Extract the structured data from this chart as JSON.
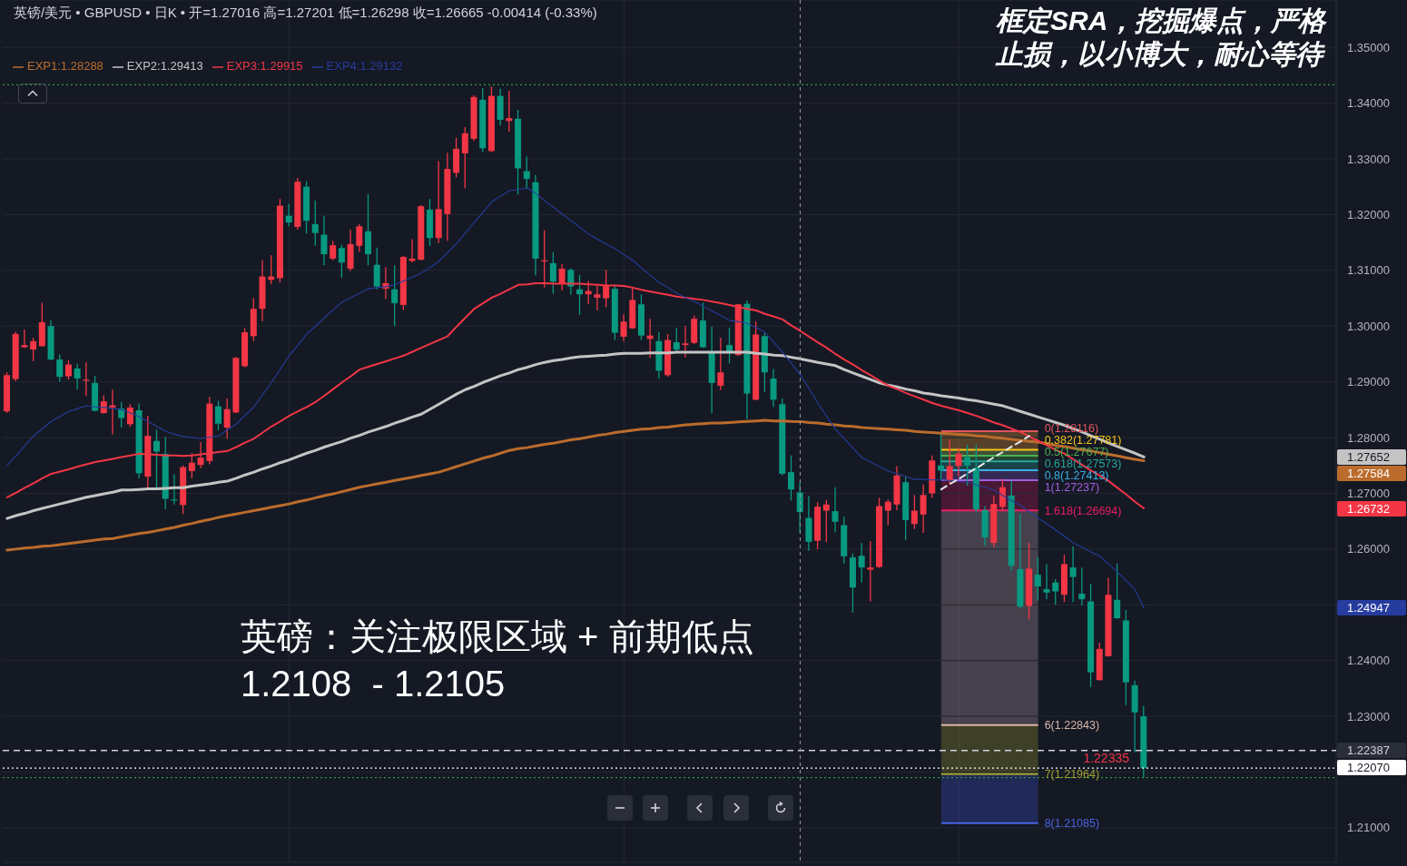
{
  "chart_data": {
    "type": "candlestick",
    "title": "英镑/美元 • GBPUSD • 日K • 开=1.27016 高=1.27201 低=1.26298 收=1.26665 -0.00414 (-0.33%)",
    "categories": [
      null,
      null,
      null,
      null,
      null,
      null,
      null,
      null,
      null,
      null,
      null,
      null,
      null,
      null,
      null,
      null,
      null,
      null,
      null,
      null,
      null,
      null,
      null,
      null,
      null,
      null,
      null,
      null,
      null,
      null,
      null,
      null,
      null,
      null,
      null,
      null,
      null,
      null,
      null,
      null,
      null,
      null,
      null,
      null,
      null,
      null,
      null,
      null,
      null,
      null,
      null,
      null,
      null,
      null,
      null,
      null,
      null,
      null,
      null,
      null,
      null,
      null,
      null,
      null,
      null,
      null,
      null,
      null,
      null,
      null,
      null,
      null,
      null,
      null,
      null,
      null,
      null,
      null,
      null,
      null,
      null,
      null,
      null,
      null,
      null,
      null,
      null,
      null,
      null,
      null,
      null,
      null,
      null,
      null,
      null,
      null,
      null,
      null,
      null,
      null,
      null,
      null,
      null,
      null,
      null,
      null,
      null,
      null,
      null,
      null,
      null,
      null,
      null,
      null,
      null,
      null,
      null,
      null,
      null,
      null,
      null,
      null,
      null,
      null,
      null,
      null,
      null,
      null,
      null,
      null
    ],
    "ohlc": [
      [
        1.2847,
        1.2917,
        1.2844,
        1.2912
      ],
      [
        1.2905,
        1.299,
        1.2901,
        1.2986
      ],
      [
        1.2962,
        1.2994,
        1.2961,
        1.2966
      ],
      [
        1.2958,
        1.2979,
        1.2937,
        1.2973
      ],
      [
        1.2964,
        1.3042,
        1.2963,
        1.3007
      ],
      [
        1.3,
        1.3011,
        1.2939,
        1.294
      ],
      [
        1.294,
        1.2949,
        1.29,
        1.2909
      ],
      [
        1.291,
        1.2939,
        1.2904,
        1.2931
      ],
      [
        1.2924,
        1.2933,
        1.2886,
        1.2906
      ],
      [
        1.2902,
        1.2935,
        1.2875,
        1.2904
      ],
      [
        1.2898,
        1.2911,
        1.2847,
        1.2848
      ],
      [
        1.2844,
        1.2876,
        1.2843,
        1.2865
      ],
      [
        1.2854,
        1.2886,
        1.2806,
        1.2858
      ],
      [
        1.2852,
        1.2864,
        1.2818,
        1.2835
      ],
      [
        1.2824,
        1.286,
        1.2819,
        1.2854
      ],
      [
        1.2849,
        1.2861,
        1.2727,
        1.2736
      ],
      [
        1.273,
        1.2839,
        1.2706,
        1.2803
      ],
      [
        1.2794,
        1.2814,
        1.271,
        1.2775
      ],
      [
        1.2771,
        1.2801,
        1.2672,
        1.269
      ],
      [
        1.2689,
        1.2734,
        1.268,
        1.2687
      ],
      [
        1.2679,
        1.275,
        1.2663,
        1.2747
      ],
      [
        1.274,
        1.2772,
        1.2727,
        1.2755
      ],
      [
        1.2751,
        1.2792,
        1.2745,
        1.2764
      ],
      [
        1.2758,
        1.2873,
        1.2752,
        1.2861
      ],
      [
        1.2856,
        1.2866,
        1.2813,
        1.2825
      ],
      [
        1.2818,
        1.287,
        1.2798,
        1.2851
      ],
      [
        1.2845,
        1.2945,
        1.2844,
        1.2943
      ],
      [
        1.2928,
        1.2996,
        1.2926,
        1.2989
      ],
      [
        1.2982,
        1.305,
        1.2973,
        1.3031
      ],
      [
        1.3031,
        1.3118,
        1.3009,
        1.3089
      ],
      [
        1.3083,
        1.3127,
        1.3075,
        1.3089
      ],
      [
        1.3086,
        1.3228,
        1.3078,
        1.3216
      ],
      [
        1.3198,
        1.3219,
        1.3179,
        1.3186
      ],
      [
        1.3178,
        1.3266,
        1.3173,
        1.3259
      ],
      [
        1.325,
        1.326,
        1.3166,
        1.3189
      ],
      [
        1.3183,
        1.3225,
        1.3144,
        1.3167
      ],
      [
        1.3164,
        1.3198,
        1.3109,
        1.3129
      ],
      [
        1.3121,
        1.3153,
        1.3118,
        1.3145
      ],
      [
        1.314,
        1.3146,
        1.3087,
        1.3114
      ],
      [
        1.3103,
        1.3173,
        1.3099,
        1.3147
      ],
      [
        1.3144,
        1.3183,
        1.3133,
        1.3179
      ],
      [
        1.317,
        1.3237,
        1.3109,
        1.3129
      ],
      [
        1.311,
        1.3141,
        1.3066,
        1.3071
      ],
      [
        1.3067,
        1.3106,
        1.3049,
        1.3077
      ],
      [
        1.3066,
        1.3109,
        1.3,
        1.3041
      ],
      [
        1.3038,
        1.3126,
        1.3029,
        1.3124
      ],
      [
        1.3117,
        1.3156,
        1.3114,
        1.3121
      ],
      [
        1.3119,
        1.3217,
        1.3118,
        1.3215
      ],
      [
        1.3209,
        1.3228,
        1.3144,
        1.3158
      ],
      [
        1.3158,
        1.3296,
        1.3149,
        1.321
      ],
      [
        1.3201,
        1.3311,
        1.3153,
        1.3282
      ],
      [
        1.3275,
        1.3338,
        1.3267,
        1.3318
      ],
      [
        1.331,
        1.3357,
        1.3247,
        1.3346
      ],
      [
        1.3336,
        1.3414,
        1.3332,
        1.3411
      ],
      [
        1.3406,
        1.3427,
        1.3312,
        1.3319
      ],
      [
        1.3314,
        1.343,
        1.3312,
        1.3413
      ],
      [
        1.3413,
        1.3426,
        1.336,
        1.337
      ],
      [
        1.3368,
        1.3422,
        1.3349,
        1.3373
      ],
      [
        1.3372,
        1.3388,
        1.3236,
        1.3283
      ],
      [
        1.3278,
        1.3304,
        1.3246,
        1.3264
      ],
      [
        1.3258,
        1.3271,
        1.3091,
        1.3121
      ],
      [
        1.3116,
        1.3172,
        1.3069,
        1.3118
      ],
      [
        1.3113,
        1.3133,
        1.3058,
        1.308
      ],
      [
        1.3076,
        1.3111,
        1.3064,
        1.3103
      ],
      [
        1.3101,
        1.3104,
        1.3056,
        1.3071
      ],
      [
        1.3066,
        1.3092,
        1.302,
        1.3057
      ],
      [
        1.3057,
        1.3081,
        1.304,
        1.3063
      ],
      [
        1.3051,
        1.3072,
        1.3028,
        1.3057
      ],
      [
        1.305,
        1.3101,
        1.3034,
        1.3073
      ],
      [
        1.3067,
        1.3075,
        1.2975,
        1.2988
      ],
      [
        1.2981,
        1.3021,
        1.2973,
        1.3008
      ],
      [
        1.2996,
        1.3069,
        1.2995,
        1.3047
      ],
      [
        1.3039,
        1.3057,
        1.2975,
        1.2983
      ],
      [
        1.2977,
        1.3013,
        1.2943,
        1.2983
      ],
      [
        1.2973,
        1.299,
        1.2906,
        1.292
      ],
      [
        1.2912,
        1.2986,
        1.2909,
        1.2975
      ],
      [
        1.2971,
        1.2997,
        1.2955,
        1.2958
      ],
      [
        1.2966,
        1.3,
        1.2944,
        1.2969
      ],
      [
        1.297,
        1.3019,
        1.2968,
        1.3013
      ],
      [
        1.301,
        1.3042,
        1.2961,
        1.2962
      ],
      [
        1.2953,
        1.2999,
        1.2844,
        1.2898
      ],
      [
        1.2893,
        1.2979,
        1.2885,
        1.2917
      ],
      [
        1.2966,
        1.2997,
        1.2933,
        1.2955
      ],
      [
        1.2948,
        1.304,
        1.2947,
        1.3039
      ],
      [
        1.304,
        1.3046,
        1.2833,
        1.2879
      ],
      [
        1.2868,
        1.3008,
        1.2867,
        1.2985
      ],
      [
        1.2982,
        1.2987,
        1.2882,
        1.2917
      ],
      [
        1.2906,
        1.2923,
        1.2855,
        1.2868
      ],
      [
        1.286,
        1.287,
        1.2732,
        1.2735
      ],
      [
        1.2738,
        1.2768,
        1.2687,
        1.2707
      ],
      [
        1.27016,
        1.27201,
        1.26298,
        1.26665
      ],
      [
        1.2656,
        1.2695,
        1.2597,
        1.2613
      ],
      [
        1.2615,
        1.2684,
        1.26,
        1.2676
      ],
      [
        1.2669,
        1.2688,
        1.2613,
        1.268
      ],
      [
        1.2668,
        1.2711,
        1.263,
        1.2649
      ],
      [
        1.2643,
        1.2658,
        1.2574,
        1.2587
      ],
      [
        1.2585,
        1.2592,
        1.2486,
        1.2531
      ],
      [
        1.2588,
        1.2611,
        1.254,
        1.2567
      ],
      [
        1.2563,
        1.2614,
        1.2506,
        1.2567
      ],
      [
        1.2568,
        1.2692,
        1.2566,
        1.2677
      ],
      [
        1.2669,
        1.2689,
        1.2643,
        1.2685
      ],
      [
        1.268,
        1.2749,
        1.267,
        1.2732
      ],
      [
        1.272,
        1.273,
        1.2616,
        1.2652
      ],
      [
        1.2645,
        1.2697,
        1.2636,
        1.2669
      ],
      [
        1.2662,
        1.2716,
        1.2629,
        1.2697
      ],
      [
        1.27,
        1.2768,
        1.2692,
        1.2759
      ],
      [
        1.275,
        1.2807,
        1.2725,
        1.2741
      ],
      [
        1.2722,
        1.2797,
        1.2716,
        1.2749
      ],
      [
        1.2749,
        1.2782,
        1.273,
        1.2771
      ],
      [
        1.2765,
        1.2787,
        1.2714,
        1.275
      ],
      [
        1.2746,
        1.2787,
        1.2665,
        1.2671
      ],
      [
        1.267,
        1.2677,
        1.2606,
        1.2621
      ],
      [
        1.2611,
        1.2696,
        1.2603,
        1.2681
      ],
      [
        1.2676,
        1.2726,
        1.2668,
        1.2711
      ],
      [
        1.2696,
        1.2722,
        1.2561,
        1.257
      ],
      [
        1.2564,
        1.2663,
        1.2494,
        1.2497
      ],
      [
        1.2498,
        1.2611,
        1.2474,
        1.2565
      ],
      [
        1.2554,
        1.2586,
        1.2508,
        1.2533
      ],
      [
        1.2528,
        1.2573,
        1.251,
        1.2522
      ],
      [
        1.254,
        1.2546,
        1.25,
        1.2524
      ],
      [
        1.2518,
        1.259,
        1.2505,
        1.2573
      ],
      [
        1.2567,
        1.2605,
        1.2505,
        1.255
      ],
      [
        1.252,
        1.2567,
        1.2499,
        1.251
      ],
      [
        1.2506,
        1.2538,
        1.2352,
        1.2379
      ],
      [
        1.2365,
        1.2432,
        1.2364,
        1.2421
      ],
      [
        1.2408,
        1.2549,
        1.2407,
        1.2518
      ],
      [
        1.2509,
        1.2574,
        1.2475,
        1.2476
      ],
      [
        1.2472,
        1.2491,
        1.232,
        1.2361
      ],
      [
        1.2356,
        1.2364,
        1.2236,
        1.2307
      ],
      [
        1.23,
        1.2319,
        1.219,
        1.2207
      ]
    ],
    "colors": [
      "#f23645",
      "#f23645",
      "#f23645",
      "#f23645",
      "#f23645",
      "#089981",
      "#089981",
      "#f23645",
      "#089981",
      "#f23645",
      "#089981",
      "#f23645",
      "#f23645",
      "#089981",
      "#f23645",
      "#089981",
      "#f23645",
      "#089981",
      "#089981",
      "#089981",
      "#f23645",
      "#f23645",
      "#f23645",
      "#f23645",
      "#089981",
      "#f23645",
      "#f23645",
      "#f23645",
      "#f23645",
      "#f23645",
      "#f23645",
      "#f23645",
      "#089981",
      "#f23645",
      "#089981",
      "#089981",
      "#089981",
      "#f23645",
      "#089981",
      "#f23645",
      "#f23645",
      "#089981",
      "#089981",
      "#f23645",
      "#089981",
      "#f23645",
      "#f23645",
      "#f23645",
      "#089981",
      "#f23645",
      "#f23645",
      "#f23645",
      "#f23645",
      "#f23645",
      "#089981",
      "#f23645",
      "#089981",
      "#f23645",
      "#089981",
      "#089981",
      "#089981",
      "#f23645",
      "#089981",
      "#f23645",
      "#089981",
      "#089981",
      "#f23645",
      "#f23645",
      "#f23645",
      "#089981",
      "#f23645",
      "#f23645",
      "#089981",
      "#f23645",
      "#089981",
      "#f23645",
      "#089981",
      "#f23645",
      "#f23645",
      "#089981",
      "#089981",
      "#f23645",
      "#089981",
      "#f23645",
      "#089981",
      "#f23645",
      "#089981",
      "#089981",
      "#089981",
      "#089981",
      "#089981",
      "#089981",
      "#f23645",
      "#f23645",
      "#089981",
      "#089981",
      "#089981",
      "#089981",
      "#f23645",
      "#f23645",
      "#f23645",
      "#f23645",
      "#089981",
      "#f23645",
      "#f23645",
      "#f23645",
      "#089981",
      "#f23645",
      "#f23645",
      "#089981",
      "#089981",
      "#089981",
      "#f23645",
      "#f23645",
      "#089981",
      "#089981",
      "#f23645",
      "#089981",
      "#089981",
      "#089981",
      "#f23645",
      "#089981",
      "#089981",
      "#089981",
      "#f23645",
      "#f23645",
      "#089981",
      "#089981",
      "#089981",
      "#089981"
    ],
    "series": [
      {
        "name": "EXP1:1.28288",
        "type": "line",
        "color": "#bb6c2c",
        "values": [
          1.2598,
          1.26,
          1.2602,
          1.2603,
          1.2605,
          1.2606,
          1.2608,
          1.261,
          1.2612,
          1.2614,
          1.2616,
          1.2618,
          1.2619,
          1.2622,
          1.2625,
          1.2628,
          1.263,
          1.2633,
          1.2636,
          1.2639,
          1.2643,
          1.2646,
          1.265,
          1.2653,
          1.2657,
          1.266,
          1.2663,
          1.2666,
          1.2669,
          1.2672,
          1.2675,
          1.2678,
          1.2681,
          1.2685,
          1.2688,
          1.2692,
          1.2696,
          1.2699,
          1.2703,
          1.2707,
          1.2711,
          1.2714,
          1.2717,
          1.272,
          1.2723,
          1.2726,
          1.2729,
          1.2732,
          1.2735,
          1.2738,
          1.2743,
          1.2748,
          1.2753,
          1.2758,
          1.2763,
          1.2767,
          1.2772,
          1.2777,
          1.278,
          1.2782,
          1.2785,
          1.2788,
          1.279,
          1.2793,
          1.2796,
          1.2798,
          1.2801,
          1.2804,
          1.2806,
          1.2809,
          1.2811,
          1.2813,
          1.2815,
          1.2816,
          1.2818,
          1.2819,
          1.2821,
          1.2823,
          1.2824,
          1.2825,
          1.2826,
          1.2826,
          1.2827,
          1.2828,
          1.2829,
          1.283,
          1.2831,
          1.283,
          1.283,
          1.2829,
          1.28288,
          1.2827,
          1.2826,
          1.2824,
          1.2823,
          1.2821,
          1.282,
          1.2818,
          1.2817,
          1.2816,
          1.2815,
          1.2814,
          1.2813,
          1.2811,
          1.281,
          1.2809,
          1.2808,
          1.2807,
          1.2806,
          1.2805,
          1.2803,
          1.2802,
          1.28,
          1.2799,
          1.2797,
          1.2795,
          1.2793,
          1.2792,
          1.2789,
          1.2786,
          1.2784,
          1.2781,
          1.2778,
          1.2776,
          1.2773,
          1.277,
          1.2767,
          1.2764,
          1.2761,
          1.27584
        ]
      },
      {
        "name": "EXP2:1.29413",
        "type": "line",
        "color": "#c4c4c4",
        "values": [
          1.2655,
          1.266,
          1.2664,
          1.2669,
          1.2673,
          1.2677,
          1.2681,
          1.2685,
          1.2689,
          1.2693,
          1.2696,
          1.2699,
          1.2702,
          1.2706,
          1.2706,
          1.2707,
          1.2708,
          1.2708,
          1.2709,
          1.271,
          1.271,
          1.2713,
          1.2715,
          1.2717,
          1.272,
          1.2722,
          1.2727,
          1.2733,
          1.2738,
          1.2744,
          1.2749,
          1.2755,
          1.276,
          1.2766,
          1.2772,
          1.2777,
          1.2783,
          1.2788,
          1.2793,
          1.2799,
          1.2804,
          1.281,
          1.2815,
          1.282,
          1.2826,
          1.2831,
          1.2837,
          1.2842,
          1.2851,
          1.286,
          1.2869,
          1.2878,
          1.2886,
          1.2892,
          1.2899,
          1.2905,
          1.2911,
          1.2916,
          1.2922,
          1.2926,
          1.2931,
          1.2935,
          1.2938,
          1.294,
          1.2943,
          1.2945,
          1.2946,
          1.2947,
          1.2948,
          1.295,
          1.2951,
          1.2951,
          1.2951,
          1.2952,
          1.2952,
          1.2952,
          1.2953,
          1.2953,
          1.2953,
          1.2953,
          1.2953,
          1.2953,
          1.2953,
          1.2953,
          1.2953,
          1.2951,
          1.295,
          1.2948,
          1.2947,
          1.2944,
          1.29413,
          1.2938,
          1.2935,
          1.2932,
          1.2929,
          1.2922,
          1.2916,
          1.291,
          1.2904,
          1.2898,
          1.2894,
          1.2891,
          1.2887,
          1.2884,
          1.288,
          1.2878,
          1.2875,
          1.2873,
          1.2871,
          1.2868,
          1.2866,
          1.2863,
          1.286,
          1.2857,
          1.2852,
          1.2847,
          1.2842,
          1.2837,
          1.2832,
          1.2827,
          1.2822,
          1.2816,
          1.281,
          1.2803,
          1.2797,
          1.279,
          1.2784,
          1.2778,
          1.2772,
          1.27652
        ]
      },
      {
        "name": "EXP3:1.29915",
        "type": "line",
        "color": "#f23645",
        "values": [
          1.2693,
          1.2701,
          1.271,
          1.2718,
          1.2727,
          1.2735,
          1.2739,
          1.2743,
          1.2748,
          1.2752,
          1.2756,
          1.2759,
          1.2762,
          1.2765,
          1.2768,
          1.2771,
          1.277,
          1.2769,
          1.2768,
          1.2768,
          1.2767,
          1.2768,
          1.277,
          1.2772,
          1.2774,
          1.2776,
          1.2783,
          1.2791,
          1.2798,
          1.2809,
          1.282,
          1.2829,
          1.2839,
          1.2847,
          1.2855,
          1.2864,
          1.2875,
          1.2887,
          1.2899,
          1.291,
          1.2922,
          1.2927,
          1.2932,
          1.2937,
          1.2942,
          1.2947,
          1.2954,
          1.2961,
          1.2968,
          1.2975,
          1.2982,
          1.2999,
          1.3015,
          1.3031,
          1.3041,
          1.3051,
          1.3058,
          1.3066,
          1.3074,
          1.3075,
          1.3077,
          1.3077,
          1.3076,
          1.3076,
          1.3076,
          1.3076,
          1.3075,
          1.3074,
          1.3073,
          1.3073,
          1.3072,
          1.3069,
          1.3065,
          1.3062,
          1.3059,
          1.3056,
          1.3053,
          1.3051,
          1.3049,
          1.3047,
          1.3044,
          1.3041,
          1.3038,
          1.3034,
          1.3031,
          1.3028,
          1.3022,
          1.3017,
          1.3012,
          1.3001,
          1.29915,
          1.2981,
          1.2971,
          1.2961,
          1.295,
          1.294,
          1.2931,
          1.2921,
          1.2912,
          1.2902,
          1.2893,
          1.2887,
          1.288,
          1.2874,
          1.2868,
          1.2862,
          1.2857,
          1.2853,
          1.2849,
          1.2844,
          1.2839,
          1.2833,
          1.2827,
          1.2822,
          1.2816,
          1.281,
          1.2802,
          1.2794,
          1.2786,
          1.2778,
          1.2771,
          1.2761,
          1.2751,
          1.2741,
          1.2732,
          1.2722,
          1.271,
          1.2698,
          1.2685,
          1.26732
        ]
      },
      {
        "name": "EXP4:1.29132",
        "type": "line",
        "color": "#263c9e",
        "values": [
          1.275,
          1.2767,
          1.2785,
          1.2803,
          1.2816,
          1.2829,
          1.2838,
          1.2847,
          1.2852,
          1.2857,
          1.2855,
          1.2854,
          1.2852,
          1.285,
          1.2844,
          1.2837,
          1.2829,
          1.282,
          1.2811,
          1.2806,
          1.2802,
          1.28,
          1.2798,
          1.2801,
          1.2803,
          1.2814,
          1.2824,
          1.284,
          1.2855,
          1.2877,
          1.2899,
          1.2923,
          1.2947,
          1.2966,
          1.2986,
          1.3,
          1.3015,
          1.3029,
          1.3043,
          1.3051,
          1.3059,
          1.3067,
          1.3069,
          1.3071,
          1.3074,
          1.3081,
          1.3088,
          1.3095,
          1.3105,
          1.3116,
          1.3132,
          1.3148,
          1.3167,
          1.3186,
          1.3204,
          1.3223,
          1.3233,
          1.3243,
          1.3245,
          1.3248,
          1.3238,
          1.3225,
          1.3213,
          1.3201,
          1.3189,
          1.3177,
          1.3165,
          1.3156,
          1.3147,
          1.3139,
          1.3128,
          1.3118,
          1.3104,
          1.3091,
          1.3078,
          1.3069,
          1.3059,
          1.3051,
          1.3044,
          1.3036,
          1.3027,
          1.3019,
          1.301,
          1.3008,
          1.3005,
          1.2997,
          1.2989,
          1.2971,
          1.2953,
          1.2933,
          1.29132,
          1.2888,
          1.2862,
          1.2838,
          1.2815,
          1.2798,
          1.2781,
          1.2764,
          1.2756,
          1.2748,
          1.274,
          1.2735,
          1.273,
          1.2725,
          1.2725,
          1.2724,
          1.2724,
          1.2723,
          1.2721,
          1.272,
          1.2715,
          1.2711,
          1.2706,
          1.2696,
          1.2687,
          1.2678,
          1.2667,
          1.2656,
          1.2645,
          1.2634,
          1.2623,
          1.2611,
          1.2603,
          1.2595,
          1.2587,
          1.2573,
          1.2559,
          1.2543,
          1.2527,
          1.24947
        ]
      },
      {
        "type": "line",
        "color": "#e6e6e6",
        "line_style": "dashed",
        "values": [
          null,
          null,
          null,
          null,
          null,
          null,
          null,
          null,
          null,
          null,
          null,
          null,
          null,
          null,
          null,
          null,
          null,
          null,
          null,
          null,
          null,
          null,
          null,
          null,
          null,
          null,
          null,
          null,
          null,
          null,
          null,
          null,
          null,
          null,
          null,
          null,
          null,
          null,
          null,
          null,
          null,
          null,
          null,
          null,
          null,
          null,
          null,
          null,
          null,
          null,
          null,
          null,
          null,
          null,
          null,
          null,
          null,
          null,
          null,
          null,
          null,
          null,
          null,
          null,
          null,
          null,
          null,
          null,
          null,
          null,
          null,
          null,
          null,
          null,
          null,
          null,
          null,
          null,
          null,
          null,
          null,
          null,
          null,
          null,
          null,
          null,
          null,
          null,
          null,
          null,
          null,
          null,
          null,
          null,
          null,
          null,
          null,
          null,
          null,
          null,
          null,
          null,
          null,
          null,
          null,
          null,
          1.2707,
          1.2717,
          1.2726,
          1.2736,
          1.2745,
          1.2755,
          1.2765,
          1.2774,
          1.2784,
          1.2793,
          1.2803,
          null,
          null,
          null,
          null,
          null,
          null,
          null,
          null,
          null,
          null,
          null,
          null,
          null
        ]
      }
    ],
    "ylim": [
      1.2038,
      1.3585
    ],
    "yticks": [
      {
        "value": 1.35,
        "label": "1.35000"
      },
      {
        "value": 1.34,
        "label": "1.34000"
      },
      {
        "value": 1.33,
        "label": "1.33000"
      },
      {
        "value": 1.32,
        "label": "1.32000"
      },
      {
        "value": 1.31,
        "label": "1.31000"
      },
      {
        "value": 1.3,
        "label": "1.30000"
      },
      {
        "value": 1.29,
        "label": "1.29000"
      },
      {
        "value": 1.28,
        "label": "1.28000"
      },
      {
        "value": 1.27,
        "label": "1.27000"
      },
      {
        "value": 1.26,
        "label": "1.26000"
      },
      {
        "value": 1.25,
        "label": null
      },
      {
        "value": 1.24,
        "label": "1.24000"
      },
      {
        "value": 1.23,
        "label": "1.23000"
      },
      {
        "value": 1.22,
        "label": null
      },
      {
        "value": 1.21,
        "label": "1.21000"
      }
    ],
    "tick_labels": "y",
    "grid": true,
    "legend": "top left",
    "marker": "none",
    "ref_lines": [
      {
        "axis": "y",
        "value": 1.28116,
        "label": "0(1.28116)",
        "color": "#e0565e"
      },
      {
        "axis": "y",
        "value": 1.27781,
        "label": "0.382(1.27781)",
        "color": "#f5c518"
      },
      {
        "axis": "y",
        "value": 1.27677,
        "label": "0.5(1.27677)",
        "color": "#4caf50"
      },
      {
        "axis": "y",
        "value": 1.27573,
        "label": "0.618(1.27573)",
        "color": "#26a69a"
      },
      {
        "axis": "y",
        "value": 1.27413,
        "label": "0.8(1.27413)",
        "color": "#3ab0e8"
      },
      {
        "axis": "y",
        "value": 1.27237,
        "label": "1(1.27237)",
        "color": "#a45ee0"
      },
      {
        "axis": "y",
        "value": 1.26694,
        "label": "1.618(1.26694)",
        "color": "#e91e63"
      },
      {
        "axis": "y",
        "value": 1.22843,
        "label": "6(1.22843)",
        "color": "#d8b8a8"
      },
      {
        "axis": "y",
        "value": 1.21964,
        "label": "7(1.21964)",
        "color": "#a0a030"
      },
      {
        "axis": "y",
        "value": 1.21085,
        "label": "8(1.21085)",
        "color": "#4a62e0"
      },
      {
        "axis": "y",
        "value": 1.22387,
        "label": "1.22387",
        "color": "#d1d4dc",
        "line_style": "dashed"
      },
      {
        "axis": "y",
        "value": 1.2207,
        "label": "1.22070",
        "color": "#ffffff",
        "line_style": "dotted"
      },
      {
        "axis": "y",
        "value": 1.3433,
        "color": "#2e9e3e",
        "line_style": "dotted"
      },
      {
        "axis": "y",
        "value": 1.219,
        "color": "#2e9e3e",
        "line_style": "dotted"
      }
    ],
    "bands": [
      {
        "axis": "y",
        "from": 1.28116,
        "to": 1.27781,
        "color": "#f29d38"
      },
      {
        "axis": "y",
        "from": 1.27781,
        "to": 1.27677,
        "color": "#9ccc65"
      },
      {
        "axis": "y",
        "from": 1.27677,
        "to": 1.27573,
        "color": "#4caf50"
      },
      {
        "axis": "y",
        "from": 1.27573,
        "to": 1.27413,
        "color": "#26a69a"
      },
      {
        "axis": "y",
        "from": 1.27413,
        "to": 1.27237,
        "color": "#7e57c2"
      },
      {
        "axis": "y",
        "from": 1.27237,
        "to": 1.26694,
        "color": "#c2185b"
      },
      {
        "axis": "y",
        "from": 1.26694,
        "to": 1.22843,
        "color": "#b8a0a8"
      },
      {
        "axis": "y",
        "from": 1.22843,
        "to": 1.21964,
        "color": "#9a9a30"
      },
      {
        "axis": "y",
        "from": 1.21964,
        "to": 1.21085,
        "color": "#3f51d5"
      }
    ],
    "annotations": [
      "框定SRA，挖掘爆点，严格",
      "止损，以小博大，耐心等待",
      "英磅：关注极限区域 + 前期低点",
      "1.2108  - 1.2105",
      "1.22335",
      "1.27652",
      "1.27584",
      "1.26732",
      "1.24947"
    ]
  }
}
